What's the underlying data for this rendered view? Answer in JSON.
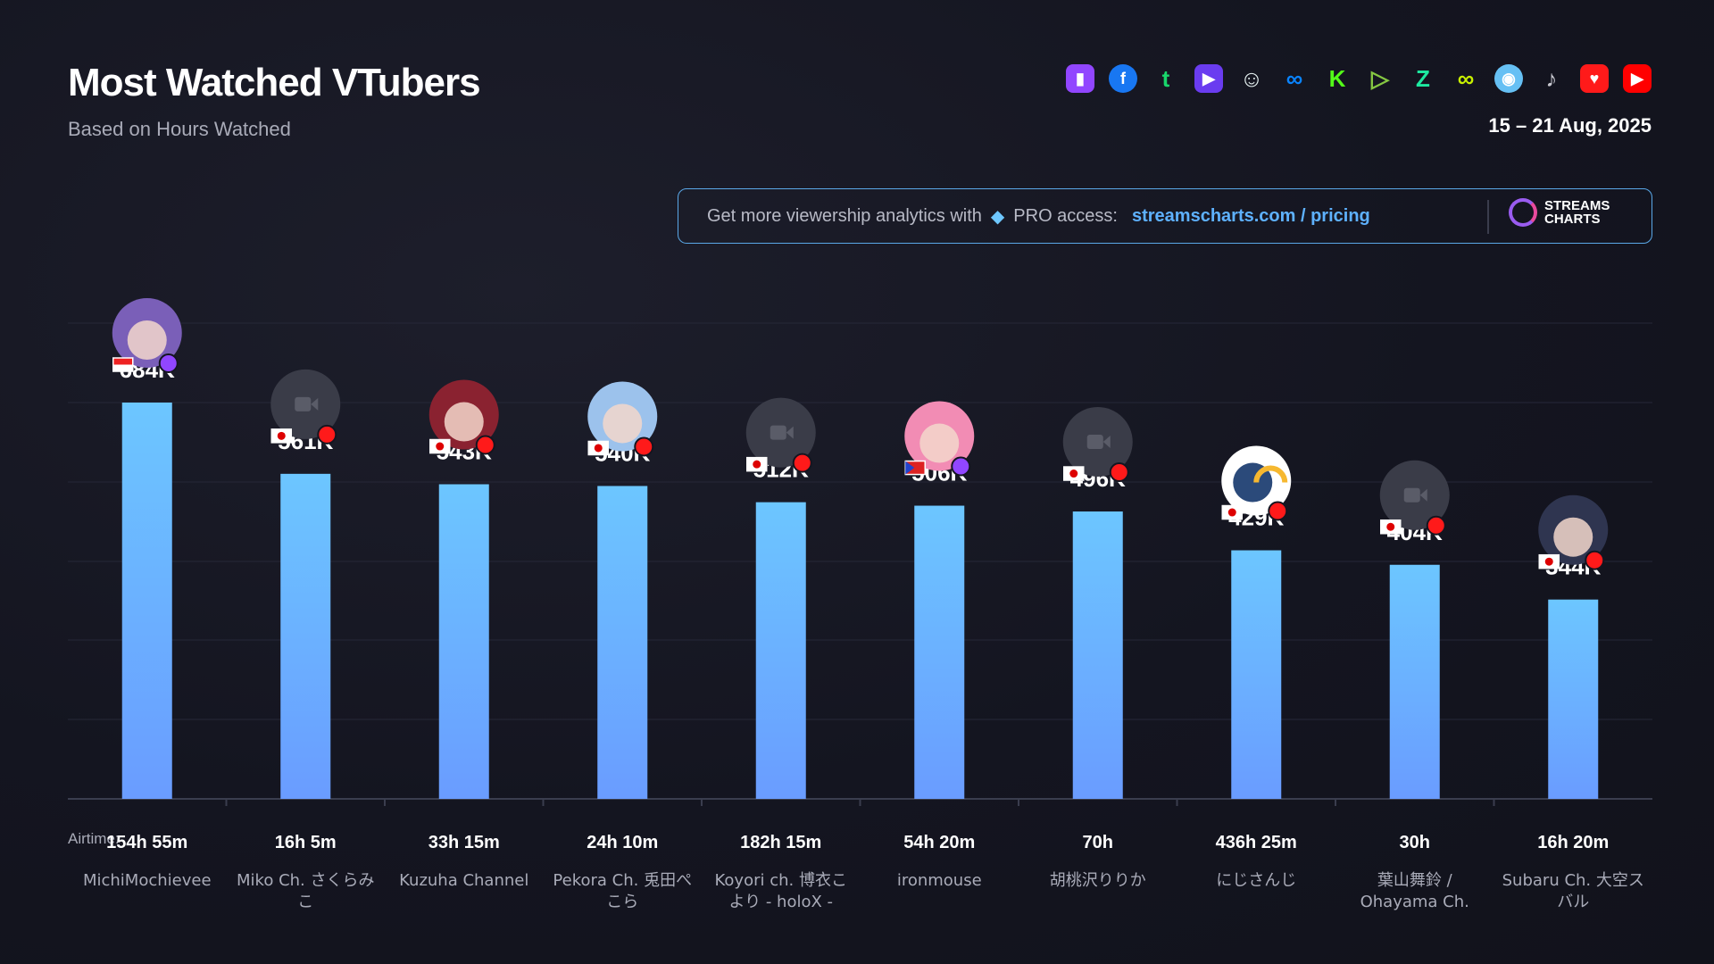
{
  "header": {
    "title": "Most Watched VTubers",
    "subtitle": "Based on Hours Watched",
    "date": "15 – 21 Aug, 2025"
  },
  "platforms": [
    {
      "name": "twitch",
      "color": "#9146ff",
      "glyph": "▮"
    },
    {
      "name": "facebook",
      "color": "#1877f2",
      "glyph": "f"
    },
    {
      "name": "trovo",
      "color": "#19d66b",
      "glyph": "t"
    },
    {
      "name": "nimo",
      "color": "#6a3cf0",
      "glyph": "▶"
    },
    {
      "name": "bigo",
      "color": "#e8f4f4",
      "glyph": "☺"
    },
    {
      "name": "vk",
      "color": "#0a84ff",
      "glyph": "∞"
    },
    {
      "name": "kick",
      "color": "#53fc18",
      "glyph": "K"
    },
    {
      "name": "rumble",
      "color": "#85c742",
      "glyph": "▷"
    },
    {
      "name": "zhanqi",
      "color": "#1de9a0",
      "glyph": "Z"
    },
    {
      "name": "afreeca",
      "color": "#c8f000",
      "glyph": "∞"
    },
    {
      "name": "steam",
      "color": "#66c0f4",
      "glyph": "◉"
    },
    {
      "name": "tiktok",
      "color": "#c9c9d1",
      "glyph": "♪"
    },
    {
      "name": "youtube-gaming",
      "color": "#ff1a1a",
      "glyph": "♥"
    },
    {
      "name": "youtube",
      "color": "#ff0000",
      "glyph": "▶"
    }
  ],
  "promo": {
    "text": "Get more viewership analytics with",
    "gem": "◆",
    "pro": "PRO access:",
    "link": "streamscharts.com / pricing",
    "logo_line1": "STREAMS",
    "logo_line2": "CHARTS"
  },
  "airtime_label": "Airtime:",
  "colors": {
    "bar_top": "#6cc6ff",
    "bar_bottom": "#6a9cff",
    "grid": "#262838",
    "axis": "#3a3d4e"
  },
  "chart_data": {
    "type": "bar",
    "title": "Most Watched VTubers",
    "ylabel": "Hours Watched",
    "ylim": [
      0,
      700
    ],
    "grid": true,
    "categories": [
      "MichiMochievee",
      "Miko Ch. さくらみこ",
      "Kuzuha Channel",
      "Pekora Ch. 兎田ぺこら",
      "Koyori ch. 博衣こより - holoX -",
      "ironmouse",
      "胡桃沢りりか",
      "にじさんじ",
      "葉山舞鈴 / Ohayama Ch.",
      "Subaru Ch. 大空スバル"
    ],
    "name_lines": [
      [
        "MichiMochievee"
      ],
      [
        "Miko Ch. さくらみ",
        "こ"
      ],
      [
        "Kuzuha Channel"
      ],
      [
        "Pekora Ch. 兎田ぺ",
        "こら"
      ],
      [
        "Koyori ch. 博衣こ",
        "より - holoX -"
      ],
      [
        "ironmouse"
      ],
      [
        "胡桃沢りりか"
      ],
      [
        "にじさんじ"
      ],
      [
        "葉山舞鈴 /",
        "Ohayama Ch."
      ],
      [
        "Subaru Ch. 大空ス",
        "バル"
      ]
    ],
    "values": [
      684,
      561,
      543,
      540,
      512,
      506,
      496,
      429,
      404,
      344
    ],
    "value_labels": [
      "684K",
      "561K",
      "543K",
      "540K",
      "512K",
      "506K",
      "496K",
      "429K",
      "404K",
      "344K"
    ],
    "airtime": [
      "154h 55m",
      "16h 5m",
      "33h 15m",
      "24h 10m",
      "182h 15m",
      "54h 20m",
      "70h",
      "436h 25m",
      "30h",
      "16h 20m"
    ],
    "avatar": [
      "art",
      "camera",
      "art",
      "art",
      "camera",
      "art",
      "camera",
      "logo",
      "camera",
      "art"
    ],
    "avatar_color": [
      "#7a5fb8",
      "#3a3c48",
      "#8a2230",
      "#9cc2ec",
      "#3a3c48",
      "#f28cb4",
      "#3a3c48",
      "#ffffff",
      "#3a3c48",
      "#2f3550"
    ],
    "flag": [
      "id",
      "jp",
      "jp",
      "jp",
      "jp",
      "pr",
      "jp",
      "jp",
      "jp",
      "jp"
    ],
    "platform": [
      "twitch",
      "youtube",
      "youtube",
      "youtube",
      "youtube",
      "twitch",
      "youtube",
      "youtube",
      "youtube",
      "youtube"
    ]
  }
}
